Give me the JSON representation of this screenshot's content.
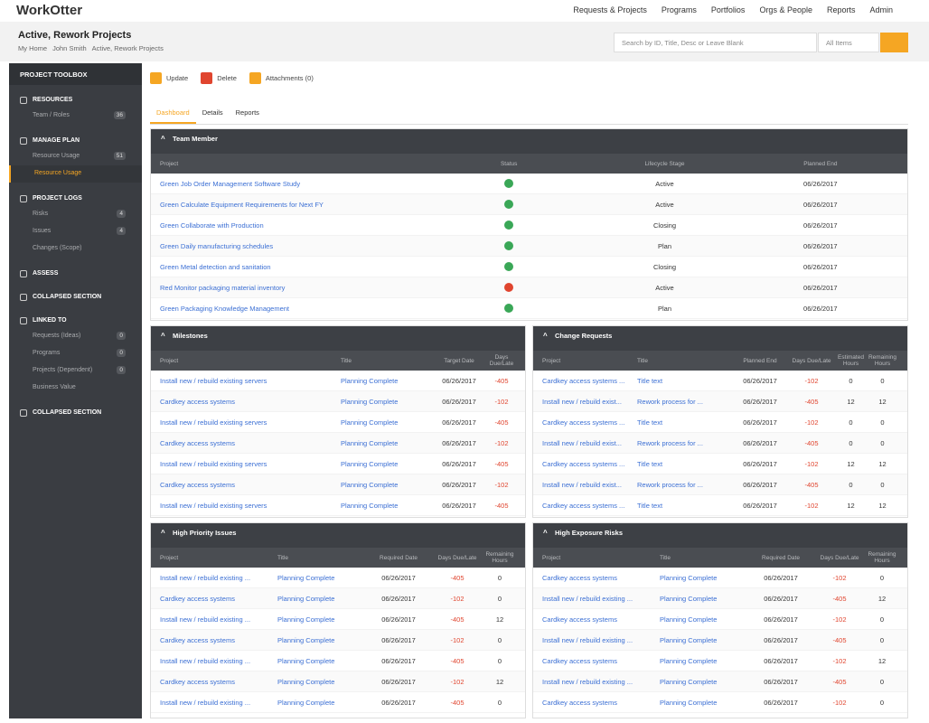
{
  "header": {
    "logo": "WorkOtter",
    "nav": [
      "Requests & Projects",
      "Programs",
      "Portfolios",
      "Orgs & People",
      "Reports",
      "Admin"
    ]
  },
  "page": {
    "title": "Active, Rework Projects",
    "breadcrumb": [
      "My Home",
      "John Smith",
      "Active, Rework Projects"
    ],
    "search_placeholder": "Search by ID, Title, Desc or Leave Blank",
    "filter": "All Items"
  },
  "sidebar": {
    "title": "PROJECT TOOLBOX",
    "sections": [
      {
        "label": "RESOURCES",
        "items": [
          {
            "label": "Team / Roles",
            "count": 36
          }
        ]
      },
      {
        "label": "MANAGE PLAN",
        "items": [
          {
            "label": "Resource Usage",
            "count": 51
          },
          {
            "label": "Resource Usage"
          }
        ]
      },
      {
        "label": "PROJECT LOGS",
        "items": [
          {
            "label": "Risks",
            "count": 4
          },
          {
            "label": "Issues",
            "count": 4
          },
          {
            "label": "Changes (Scope)"
          }
        ]
      },
      {
        "label": "ASSESS",
        "items": []
      },
      {
        "label": "COLLAPSED SECTION",
        "items": []
      },
      {
        "label": "LINKED TO",
        "items": [
          {
            "label": "Requests (Ideas)",
            "count": 0
          },
          {
            "label": "Programs",
            "count": 0
          },
          {
            "label": "Projects (Dependent)",
            "count": 0
          },
          {
            "label": "Business Value"
          }
        ]
      },
      {
        "label": "COLLAPSED SECTION",
        "items": []
      }
    ]
  },
  "toolbar": [
    "Update",
    "Delete",
    "Attachments (0)"
  ],
  "tabs": [
    "Dashboard",
    "Details",
    "Reports"
  ],
  "panels": [
    {
      "title": "Team Member",
      "columns": [
        "Project",
        "Status",
        "Lifecycle Stage",
        "Planned End"
      ],
      "status_colors": [
        "#3aa757",
        "#3aa757",
        "#3aa757",
        "#3aa757",
        "#3aa757",
        "#e0452f",
        "#3aa757"
      ],
      "rows": [
        [
          "Green Job Order Management Software Study",
          "",
          "Active",
          "06/26/2017"
        ],
        [
          "Green Calculate Equipment Requirements for Next FY",
          "",
          "Active",
          "06/26/2017"
        ],
        [
          "Green Collaborate with Production",
          "",
          "Closing",
          "06/26/2017"
        ],
        [
          "Green Daily manufacturing schedules",
          "",
          "Plan",
          "06/26/2017"
        ],
        [
          "Green Metal detection and sanitation",
          "",
          "Closing",
          "06/26/2017"
        ],
        [
          "Red Monitor packaging material inventory",
          "",
          "Active",
          "06/26/2017"
        ],
        [
          "Green Packaging Knowledge Management",
          "",
          "Plan",
          "06/26/2017"
        ]
      ]
    },
    {
      "title": "Milestones",
      "columns": [
        "Project",
        "Title",
        "Target Date",
        "Days Due/Late"
      ],
      "rows": [
        [
          "Install new / rebuild existing servers",
          "Planning Complete",
          "06/26/2017",
          -405
        ],
        [
          "Cardkey access systems",
          "Planning Complete",
          "06/26/2017",
          -102
        ],
        [
          "Install new / rebuild existing servers",
          "Planning Complete",
          "06/26/2017",
          -405
        ],
        [
          "Cardkey access systems",
          "Planning Complete",
          "06/26/2017",
          -102
        ],
        [
          "Install new / rebuild existing servers",
          "Planning Complete",
          "06/26/2017",
          -405
        ],
        [
          "Cardkey access systems",
          "Planning Complete",
          "06/26/2017",
          -102
        ],
        [
          "Install new / rebuild existing servers",
          "Planning Complete",
          "06/26/2017",
          -405
        ]
      ]
    },
    {
      "title": "Change Requests",
      "columns": [
        "Project",
        "Title",
        "Planned End",
        "Days Due/Late",
        "Estimated Hours",
        "Remaining Hours"
      ],
      "rows": [
        [
          "Cardkey access systems ...",
          "Title text",
          "06/26/2017",
          -102,
          0,
          0
        ],
        [
          "Install new / rebuild exist...",
          "Rework process for ...",
          "06/26/2017",
          -405,
          12,
          12
        ],
        [
          "Cardkey access systems ...",
          "Title text",
          "06/26/2017",
          -102,
          0,
          0
        ],
        [
          "Install new / rebuild exist...",
          "Rework process for ...",
          "06/26/2017",
          -405,
          0,
          0
        ],
        [
          "Cardkey access systems ...",
          "Title text",
          "06/26/2017",
          -102,
          12,
          12
        ],
        [
          "Install new / rebuild exist...",
          "Rework process for ...",
          "06/26/2017",
          -405,
          0,
          0
        ],
        [
          "Cardkey access systems ...",
          "Title text",
          "06/26/2017",
          -102,
          12,
          12
        ]
      ]
    },
    {
      "title": "High Priority Issues",
      "columns": [
        "Project",
        "Title",
        "Required Date",
        "Days Due/Late",
        "Remaining Hours"
      ],
      "rows": [
        [
          "Install new / rebuild existing ...",
          "Planning Complete",
          "06/26/2017",
          -405,
          0
        ],
        [
          "Cardkey access systems",
          "Planning Complete",
          "06/26/2017",
          -102,
          0
        ],
        [
          "Install new / rebuild existing ...",
          "Planning Complete",
          "06/26/2017",
          -405,
          12
        ],
        [
          "Cardkey access systems",
          "Planning Complete",
          "06/26/2017",
          -102,
          0
        ],
        [
          "Install new / rebuild existing ...",
          "Planning Complete",
          "06/26/2017",
          -405,
          0
        ],
        [
          "Cardkey access systems",
          "Planning Complete",
          "06/26/2017",
          -102,
          12
        ],
        [
          "Install new / rebuild existing ...",
          "Planning Complete",
          "06/26/2017",
          -405,
          0
        ]
      ]
    },
    {
      "title": "High Exposure Risks",
      "columns": [
        "Project",
        "Title",
        "Required Date",
        "Days Due/Late",
        "Remaining Hours"
      ],
      "rows": [
        [
          "Cardkey access systems",
          "Planning Complete",
          "06/26/2017",
          -102,
          0
        ],
        [
          "Install new / rebuild existing ...",
          "Planning Complete",
          "06/26/2017",
          -405,
          12
        ],
        [
          "Cardkey access systems",
          "Planning Complete",
          "06/26/2017",
          -102,
          0
        ],
        [
          "Install new / rebuild existing ...",
          "Planning Complete",
          "06/26/2017",
          -405,
          0
        ],
        [
          "Cardkey access systems",
          "Planning Complete",
          "06/26/2017",
          -102,
          12
        ],
        [
          "Install new / rebuild existing ...",
          "Planning Complete",
          "06/26/2017",
          -405,
          0
        ],
        [
          "Cardkey access systems",
          "Planning Complete",
          "06/26/2017",
          -102,
          0
        ]
      ]
    }
  ]
}
